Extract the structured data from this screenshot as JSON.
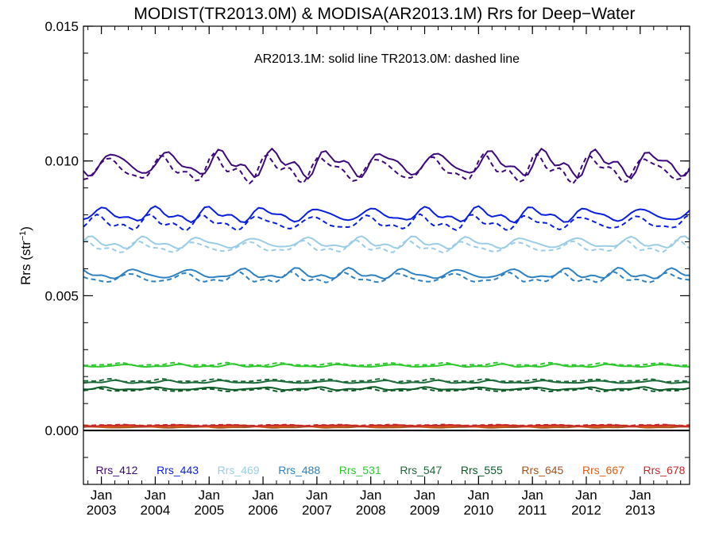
{
  "chart_data": {
    "type": "line",
    "title": "MODIST(TR2013.0M) & MODISA(AR2013.1M)  Rrs for Deep−Water",
    "ylabel_main": "Rrs (str",
    "ylabel_sup": "−1",
    "ylabel_end": ")",
    "note": "AR2013.1M: solid line   TR2013.0M: dashed line",
    "xlim": [
      "2002-09",
      "2013-12"
    ],
    "ylim": [
      -0.002,
      0.015
    ],
    "y_ticks": [
      0.0,
      0.005,
      0.01,
      0.015
    ],
    "y_tick_labels": [
      "0.000",
      "0.005",
      "0.010",
      "0.015"
    ],
    "x_ticks": [
      {
        "month": "Jan",
        "year": "2003",
        "date": "2003-01"
      },
      {
        "month": "Jan",
        "year": "2004",
        "date": "2004-01"
      },
      {
        "month": "Jan",
        "year": "2005",
        "date": "2005-01"
      },
      {
        "month": "Jan",
        "year": "2006",
        "date": "2006-01"
      },
      {
        "month": "Jan",
        "year": "2007",
        "date": "2007-01"
      },
      {
        "month": "Jan",
        "year": "2008",
        "date": "2008-01"
      },
      {
        "month": "Jan",
        "year": "2009",
        "date": "2009-01"
      },
      {
        "month": "Jan",
        "year": "2010",
        "date": "2010-01"
      },
      {
        "month": "Jan",
        "year": "2011",
        "date": "2011-01"
      },
      {
        "month": "Jan",
        "year": "2012",
        "date": "2012-01"
      },
      {
        "month": "Jan",
        "year": "2013",
        "date": "2013-01"
      }
    ],
    "zero_line": 0.0,
    "legend_placement": "bottom, inside plot",
    "grid": false,
    "series": [
      {
        "name": "Rrs_412",
        "color": "#3d0a7a",
        "solid": 0.0099,
        "dashed": 0.0097,
        "amplitude": 0.00045
      },
      {
        "name": "Rrs_443",
        "color": "#0a1fe0",
        "solid": 0.008,
        "dashed": 0.0077,
        "amplitude": 0.00025
      },
      {
        "name": "Rrs_469",
        "color": "#9ccde6",
        "solid": 0.00695,
        "dashed": 0.0068,
        "amplitude": 0.0002
      },
      {
        "name": "Rrs_488",
        "color": "#2f82c2",
        "solid": 0.0058,
        "dashed": 0.00565,
        "amplitude": 0.00018
      },
      {
        "name": "Rrs_531",
        "color": "#2ec82e",
        "solid": 0.0024,
        "dashed": 0.00245,
        "amplitude": 5e-05
      },
      {
        "name": "Rrs_547",
        "color": "#1d6b3a",
        "solid": 0.0018,
        "dashed": 0.00185,
        "amplitude": 5e-05
      },
      {
        "name": "Rrs_555",
        "color": "#0d5c28",
        "solid": 0.00155,
        "dashed": 0.0015,
        "amplitude": 5e-05
      },
      {
        "name": "Rrs_645",
        "color": "#a8521e",
        "solid": 0.00012,
        "dashed": 0.00014,
        "amplitude": 2e-05
      },
      {
        "name": "Rrs_667",
        "color": "#e05a12",
        "solid": 0.00016,
        "dashed": 0.00018,
        "amplitude": 2e-05
      },
      {
        "name": "Rrs_678",
        "color": "#c8282a",
        "solid": 0.00018,
        "dashed": 0.0002,
        "amplitude": 2e-05
      }
    ]
  }
}
